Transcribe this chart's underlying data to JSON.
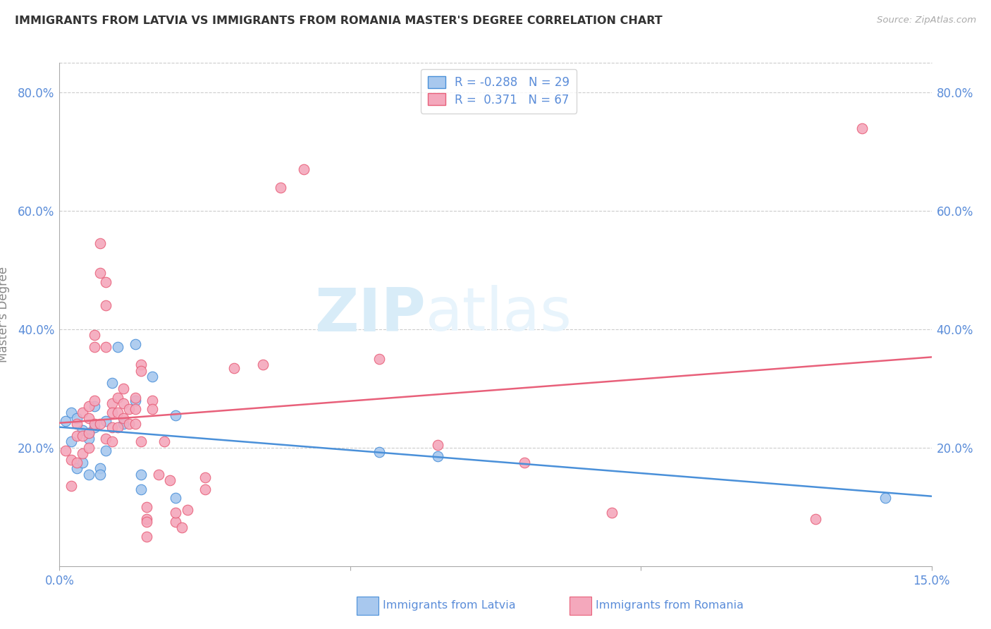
{
  "title": "IMMIGRANTS FROM LATVIA VS IMMIGRANTS FROM ROMANIA MASTER'S DEGREE CORRELATION CHART",
  "source": "Source: ZipAtlas.com",
  "ylabel": "Master's Degree",
  "xlim": [
    0.0,
    0.15
  ],
  "ylim": [
    0.0,
    0.85
  ],
  "legend_R_latvia": "-0.288",
  "legend_N_latvia": "29",
  "legend_R_romania": "0.371",
  "legend_N_romania": "67",
  "latvia_color": "#A8C8EE",
  "romania_color": "#F4A8BC",
  "latvia_line_color": "#4A90D9",
  "romania_line_color": "#E8607A",
  "title_color": "#333333",
  "axis_color": "#5B8DD9",
  "watermark_zip": "ZIP",
  "watermark_atlas": "atlas",
  "watermark_color": "#D8ECF8",
  "background_color": "#ffffff",
  "latvia_scatter_x": [
    0.001,
    0.002,
    0.002,
    0.003,
    0.003,
    0.004,
    0.004,
    0.005,
    0.005,
    0.005,
    0.006,
    0.006,
    0.007,
    0.007,
    0.008,
    0.008,
    0.009,
    0.01,
    0.011,
    0.013,
    0.013,
    0.014,
    0.014,
    0.016,
    0.02,
    0.02,
    0.055,
    0.065,
    0.142
  ],
  "latvia_scatter_y": [
    0.245,
    0.26,
    0.21,
    0.165,
    0.25,
    0.23,
    0.175,
    0.155,
    0.225,
    0.215,
    0.27,
    0.235,
    0.165,
    0.155,
    0.195,
    0.245,
    0.31,
    0.37,
    0.24,
    0.375,
    0.28,
    0.13,
    0.155,
    0.32,
    0.255,
    0.115,
    0.193,
    0.185,
    0.115
  ],
  "romania_scatter_x": [
    0.001,
    0.002,
    0.002,
    0.003,
    0.003,
    0.003,
    0.004,
    0.004,
    0.004,
    0.005,
    0.005,
    0.005,
    0.005,
    0.006,
    0.006,
    0.006,
    0.006,
    0.007,
    0.007,
    0.007,
    0.008,
    0.008,
    0.008,
    0.008,
    0.009,
    0.009,
    0.009,
    0.009,
    0.01,
    0.01,
    0.01,
    0.011,
    0.011,
    0.011,
    0.012,
    0.012,
    0.013,
    0.013,
    0.013,
    0.014,
    0.014,
    0.014,
    0.015,
    0.015,
    0.015,
    0.015,
    0.016,
    0.016,
    0.017,
    0.018,
    0.019,
    0.02,
    0.02,
    0.021,
    0.022,
    0.025,
    0.025,
    0.03,
    0.035,
    0.038,
    0.042,
    0.055,
    0.065,
    0.08,
    0.095,
    0.13,
    0.138
  ],
  "romania_scatter_y": [
    0.195,
    0.18,
    0.135,
    0.24,
    0.22,
    0.175,
    0.26,
    0.22,
    0.19,
    0.27,
    0.25,
    0.225,
    0.2,
    0.39,
    0.37,
    0.28,
    0.24,
    0.545,
    0.495,
    0.24,
    0.48,
    0.44,
    0.37,
    0.215,
    0.275,
    0.26,
    0.235,
    0.21,
    0.285,
    0.26,
    0.235,
    0.3,
    0.275,
    0.25,
    0.265,
    0.24,
    0.285,
    0.265,
    0.24,
    0.34,
    0.33,
    0.21,
    0.1,
    0.08,
    0.075,
    0.05,
    0.28,
    0.265,
    0.155,
    0.21,
    0.145,
    0.075,
    0.09,
    0.065,
    0.095,
    0.15,
    0.13,
    0.335,
    0.34,
    0.64,
    0.67,
    0.35,
    0.205,
    0.175,
    0.09,
    0.08,
    0.74
  ]
}
